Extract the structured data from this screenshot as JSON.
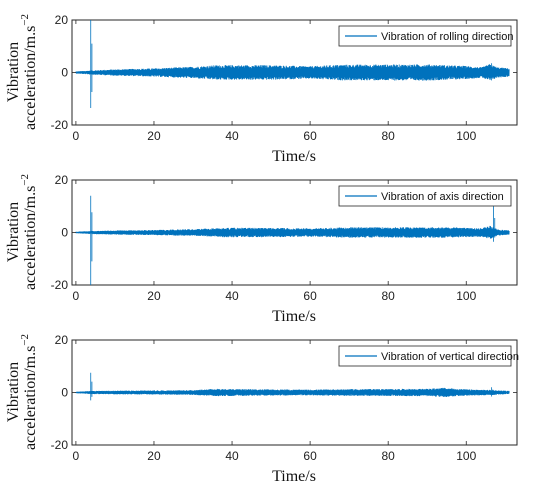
{
  "chart_data": [
    {
      "type": "line",
      "xlabel": "Time/s",
      "ylabel_line1": "Vibration",
      "ylabel_line2": "acceleration/m.s",
      "ylabel_sup": "−2",
      "xlim": [
        -1,
        113
      ],
      "ylim": [
        -20,
        20
      ],
      "xticks": [
        0,
        20,
        40,
        60,
        80,
        100
      ],
      "yticks": [
        -20,
        0,
        20
      ],
      "series": [
        {
          "name": "Vibration of rolling direction",
          "color": "#0072BD"
        }
      ],
      "signal": {
        "t_end": 111,
        "base_amplitude": 1.2,
        "envelope": [
          [
            0,
            0.4
          ],
          [
            4,
            0.8
          ],
          [
            10,
            1.2
          ],
          [
            20,
            1.6
          ],
          [
            30,
            2.2
          ],
          [
            36,
            2.8
          ],
          [
            50,
            2.8
          ],
          [
            60,
            2.4
          ],
          [
            68,
            3.0
          ],
          [
            90,
            3.1
          ],
          [
            100,
            2.5
          ],
          [
            104,
            2.0
          ],
          [
            106,
            3.2
          ],
          [
            108,
            2.0
          ],
          [
            111,
            1.6
          ]
        ],
        "spikes": [
          {
            "t": 3.8,
            "max": 20,
            "min": -13.5
          },
          {
            "t": 106.5,
            "max": 3.5,
            "min": -3.0
          }
        ]
      },
      "legend_position": "top-right"
    },
    {
      "type": "line",
      "xlabel": "Time/s",
      "ylabel_line1": "Vibration",
      "ylabel_line2": "acceleration/m.s",
      "ylabel_sup": "−2",
      "xlim": [
        -1,
        113
      ],
      "ylim": [
        -20,
        20
      ],
      "xticks": [
        0,
        20,
        40,
        60,
        80,
        100
      ],
      "yticks": [
        -20,
        0,
        20
      ],
      "series": [
        {
          "name": "Vibration of axis direction",
          "color": "#0072BD"
        }
      ],
      "signal": {
        "t_end": 111,
        "envelope": [
          [
            0,
            0.3
          ],
          [
            4,
            0.6
          ],
          [
            10,
            0.8
          ],
          [
            20,
            1.0
          ],
          [
            30,
            1.3
          ],
          [
            38,
            1.8
          ],
          [
            50,
            1.8
          ],
          [
            60,
            1.6
          ],
          [
            70,
            2.0
          ],
          [
            95,
            2.0
          ],
          [
            104,
            1.6
          ],
          [
            106,
            2.6
          ],
          [
            108,
            1.2
          ],
          [
            111,
            0.8
          ]
        ],
        "spikes": [
          {
            "t": 3.8,
            "max": 14,
            "min": -20
          },
          {
            "t": 107,
            "max": 10,
            "min": -3.5
          }
        ]
      },
      "legend_position": "top-right"
    },
    {
      "type": "line",
      "xlabel": "Time/s",
      "ylabel_line1": "Vibration",
      "ylabel_line2": "acceleration/m.s",
      "ylabel_sup": "−2",
      "xlim": [
        -1,
        113
      ],
      "ylim": [
        -20,
        20
      ],
      "xticks": [
        0,
        20,
        40,
        60,
        80,
        100
      ],
      "yticks": [
        -20,
        0,
        20
      ],
      "series": [
        {
          "name": "Vibration of vertical direction",
          "color": "#0072BD"
        }
      ],
      "signal": {
        "t_end": 111,
        "envelope": [
          [
            0,
            0.3
          ],
          [
            4,
            0.6
          ],
          [
            10,
            0.7
          ],
          [
            20,
            0.8
          ],
          [
            30,
            0.9
          ],
          [
            36,
            1.4
          ],
          [
            48,
            1.2
          ],
          [
            60,
            1.1
          ],
          [
            70,
            1.3
          ],
          [
            90,
            1.4
          ],
          [
            94,
            1.8
          ],
          [
            100,
            1.2
          ],
          [
            106,
            1.0
          ],
          [
            111,
            0.6
          ]
        ],
        "spikes": [
          {
            "t": 3.8,
            "max": 7.5,
            "min": -3.0
          },
          {
            "t": 106.5,
            "max": 2.0,
            "min": -1.5
          }
        ]
      },
      "legend_position": "top-right"
    }
  ]
}
